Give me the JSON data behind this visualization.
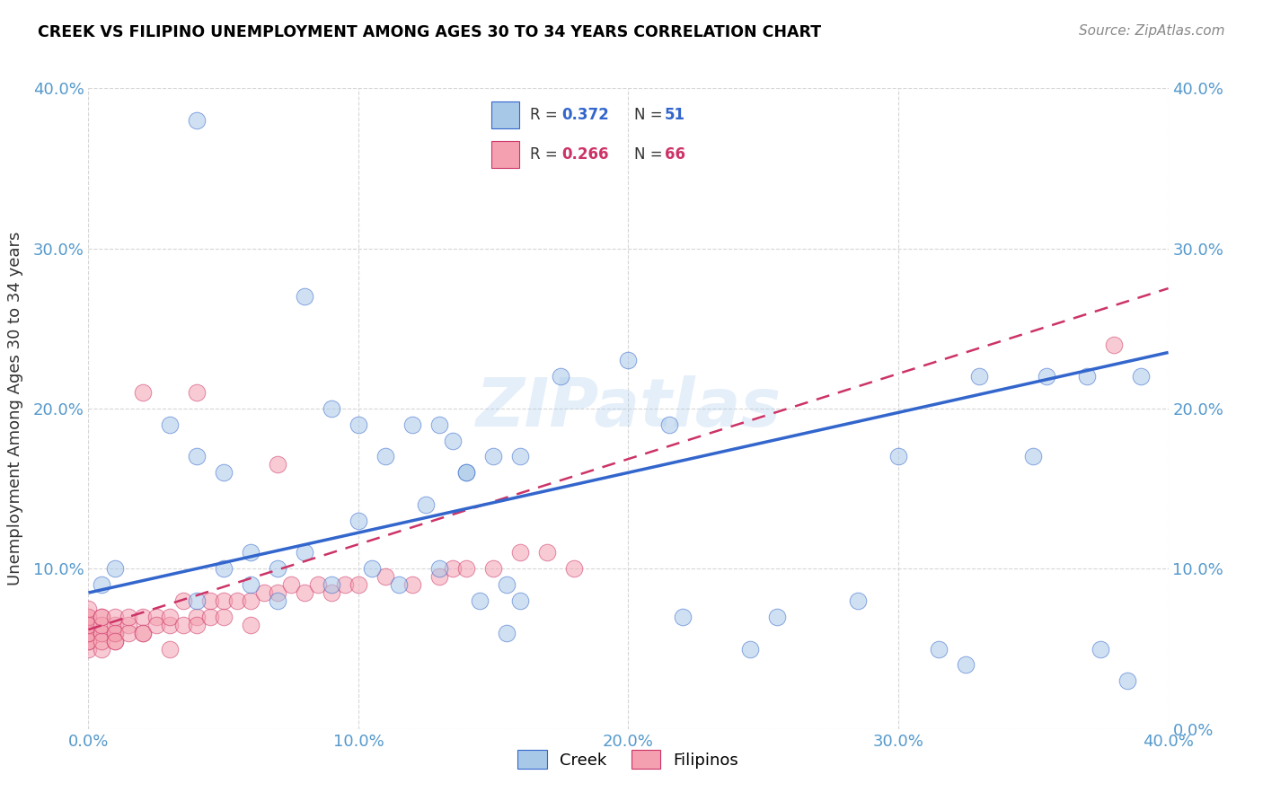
{
  "title": "CREEK VS FILIPINO UNEMPLOYMENT AMONG AGES 30 TO 34 YEARS CORRELATION CHART",
  "source": "Source: ZipAtlas.com",
  "ylabel": "Unemployment Among Ages 30 to 34 years",
  "xlim": [
    0,
    0.4
  ],
  "ylim": [
    0,
    0.4
  ],
  "xticks": [
    0.0,
    0.1,
    0.2,
    0.3,
    0.4
  ],
  "yticks": [
    0.0,
    0.1,
    0.2,
    0.3,
    0.4
  ],
  "xticklabels": [
    "0.0%",
    "10.0%",
    "20.0%",
    "30.0%",
    "40.0%"
  ],
  "yticklabels": [
    "",
    "10.0%",
    "20.0%",
    "30.0%",
    "40.0%"
  ],
  "right_yticklabels": [
    "0.0%",
    "10.0%",
    "20.0%",
    "30.0%",
    "40.0%"
  ],
  "creek_R": "0.372",
  "creek_N": "51",
  "filipino_R": "0.266",
  "filipino_N": "66",
  "creek_color": "#a8c8e8",
  "filipino_color": "#f4a0b0",
  "creek_line_color": "#3366cc",
  "filipino_line_color": "#cc3366",
  "legend_creek_label": "Creek",
  "legend_filipino_label": "Filipinos",
  "watermark": "ZIPatlas",
  "background_color": "#ffffff",
  "grid_color": "#cccccc",
  "title_color": "#000000",
  "creek_x": [
    0.005,
    0.01,
    0.03,
    0.04,
    0.04,
    0.05,
    0.05,
    0.06,
    0.06,
    0.07,
    0.07,
    0.08,
    0.08,
    0.09,
    0.09,
    0.1,
    0.1,
    0.105,
    0.11,
    0.115,
    0.12,
    0.125,
    0.13,
    0.13,
    0.135,
    0.14,
    0.145,
    0.15,
    0.155,
    0.155,
    0.16,
    0.175,
    0.2,
    0.215,
    0.22,
    0.245,
    0.255,
    0.285,
    0.3,
    0.315,
    0.325,
    0.355,
    0.37,
    0.375,
    0.385,
    0.39,
    0.04,
    0.14,
    0.16,
    0.33,
    0.35
  ],
  "creek_y": [
    0.09,
    0.1,
    0.19,
    0.38,
    0.08,
    0.1,
    0.16,
    0.11,
    0.09,
    0.1,
    0.08,
    0.27,
    0.11,
    0.2,
    0.09,
    0.13,
    0.19,
    0.1,
    0.17,
    0.09,
    0.19,
    0.14,
    0.19,
    0.1,
    0.18,
    0.16,
    0.08,
    0.17,
    0.09,
    0.06,
    0.08,
    0.22,
    0.23,
    0.19,
    0.07,
    0.05,
    0.07,
    0.08,
    0.17,
    0.05,
    0.04,
    0.22,
    0.22,
    0.05,
    0.03,
    0.22,
    0.17,
    0.16,
    0.17,
    0.22,
    0.17
  ],
  "filipino_x": [
    0.0,
    0.0,
    0.0,
    0.0,
    0.0,
    0.0,
    0.0,
    0.0,
    0.0,
    0.0,
    0.005,
    0.005,
    0.005,
    0.005,
    0.005,
    0.005,
    0.005,
    0.01,
    0.01,
    0.01,
    0.01,
    0.01,
    0.01,
    0.015,
    0.015,
    0.015,
    0.02,
    0.02,
    0.02,
    0.025,
    0.025,
    0.03,
    0.03,
    0.03,
    0.035,
    0.035,
    0.04,
    0.04,
    0.045,
    0.045,
    0.05,
    0.05,
    0.055,
    0.06,
    0.06,
    0.065,
    0.07,
    0.075,
    0.08,
    0.085,
    0.09,
    0.095,
    0.1,
    0.11,
    0.12,
    0.13,
    0.135,
    0.14,
    0.15,
    0.16,
    0.17,
    0.18,
    0.02,
    0.04,
    0.07,
    0.38
  ],
  "filipino_y": [
    0.05,
    0.055,
    0.06,
    0.065,
    0.07,
    0.07,
    0.075,
    0.055,
    0.06,
    0.065,
    0.06,
    0.05,
    0.07,
    0.06,
    0.055,
    0.065,
    0.07,
    0.055,
    0.06,
    0.065,
    0.06,
    0.07,
    0.055,
    0.065,
    0.06,
    0.07,
    0.06,
    0.07,
    0.06,
    0.07,
    0.065,
    0.065,
    0.05,
    0.07,
    0.08,
    0.065,
    0.07,
    0.065,
    0.07,
    0.08,
    0.07,
    0.08,
    0.08,
    0.08,
    0.065,
    0.085,
    0.085,
    0.09,
    0.085,
    0.09,
    0.085,
    0.09,
    0.09,
    0.095,
    0.09,
    0.095,
    0.1,
    0.1,
    0.1,
    0.11,
    0.11,
    0.1,
    0.21,
    0.21,
    0.165,
    0.24
  ]
}
